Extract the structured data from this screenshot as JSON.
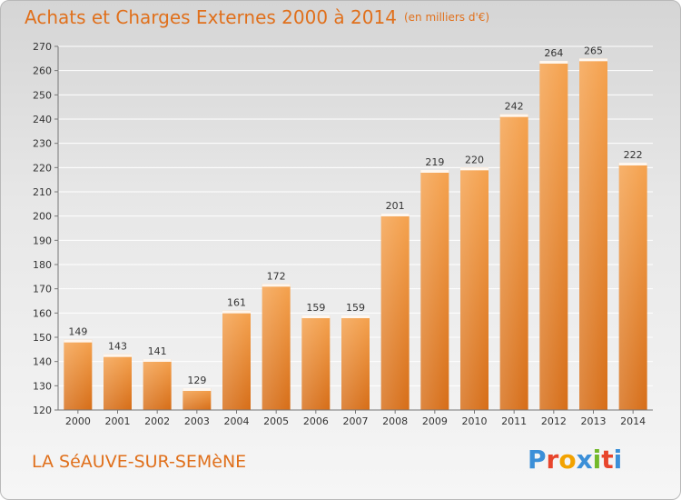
{
  "header": {
    "title": "Achats et Charges Externes 2000 à 2014",
    "unit": "(en milliers d'€)"
  },
  "footer": {
    "town": "LA SéAUVE-SUR-SEMèNE",
    "logo": "Proxiti"
  },
  "colors": {
    "accent": "#e0701c",
    "bar_top": "#f5a24e",
    "bar_bottom": "#d66d17"
  },
  "chart_data": {
    "type": "bar",
    "title": "Achats et Charges Externes 2000 à 2014",
    "subtitle": "(en milliers d'€)",
    "xlabel": "",
    "ylabel": "",
    "categories": [
      "2000",
      "2001",
      "2002",
      "2003",
      "2004",
      "2005",
      "2006",
      "2007",
      "2008",
      "2009",
      "2010",
      "2011",
      "2012",
      "2013",
      "2014"
    ],
    "values": [
      149,
      143,
      141,
      129,
      161,
      172,
      159,
      159,
      201,
      219,
      220,
      242,
      264,
      265,
      222
    ],
    "ylim": [
      120,
      270
    ],
    "yticks": [
      120,
      130,
      140,
      150,
      160,
      170,
      180,
      190,
      200,
      210,
      220,
      230,
      240,
      250,
      260,
      270
    ],
    "grid": true,
    "data_labels": true
  }
}
